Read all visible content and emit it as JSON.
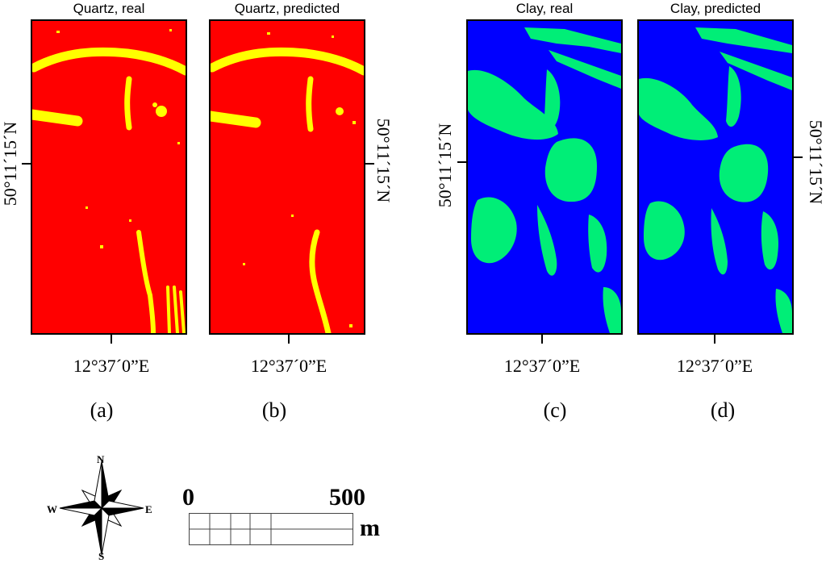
{
  "colors": {
    "quartz_background": "#ff0000",
    "quartz_feature": "#ffff00",
    "clay_background": "#0000ff",
    "clay_feature": "#00ee77"
  },
  "panels": [
    {
      "title": "Quartz, real",
      "letter": "(a)",
      "longitude": "12°37´0”E",
      "latitude": "50°11´15´N"
    },
    {
      "title": "Quartz, predicted",
      "letter": "(b)",
      "longitude": "12°37´0”E",
      "latitude": "50°11´15´N"
    },
    {
      "title": "Clay, real",
      "letter": "(c)",
      "longitude": "12°37´0”E",
      "latitude": "50°11´15´N"
    },
    {
      "title": "Clay, predicted",
      "letter": "(d)",
      "longitude": "12°37´0”E",
      "latitude": "50°11´15´N"
    }
  ],
  "compass": {
    "north": "N",
    "south": "S",
    "east": "E",
    "west": "W"
  },
  "scale_bar": {
    "start": "0",
    "end": "500",
    "unit": "m"
  }
}
